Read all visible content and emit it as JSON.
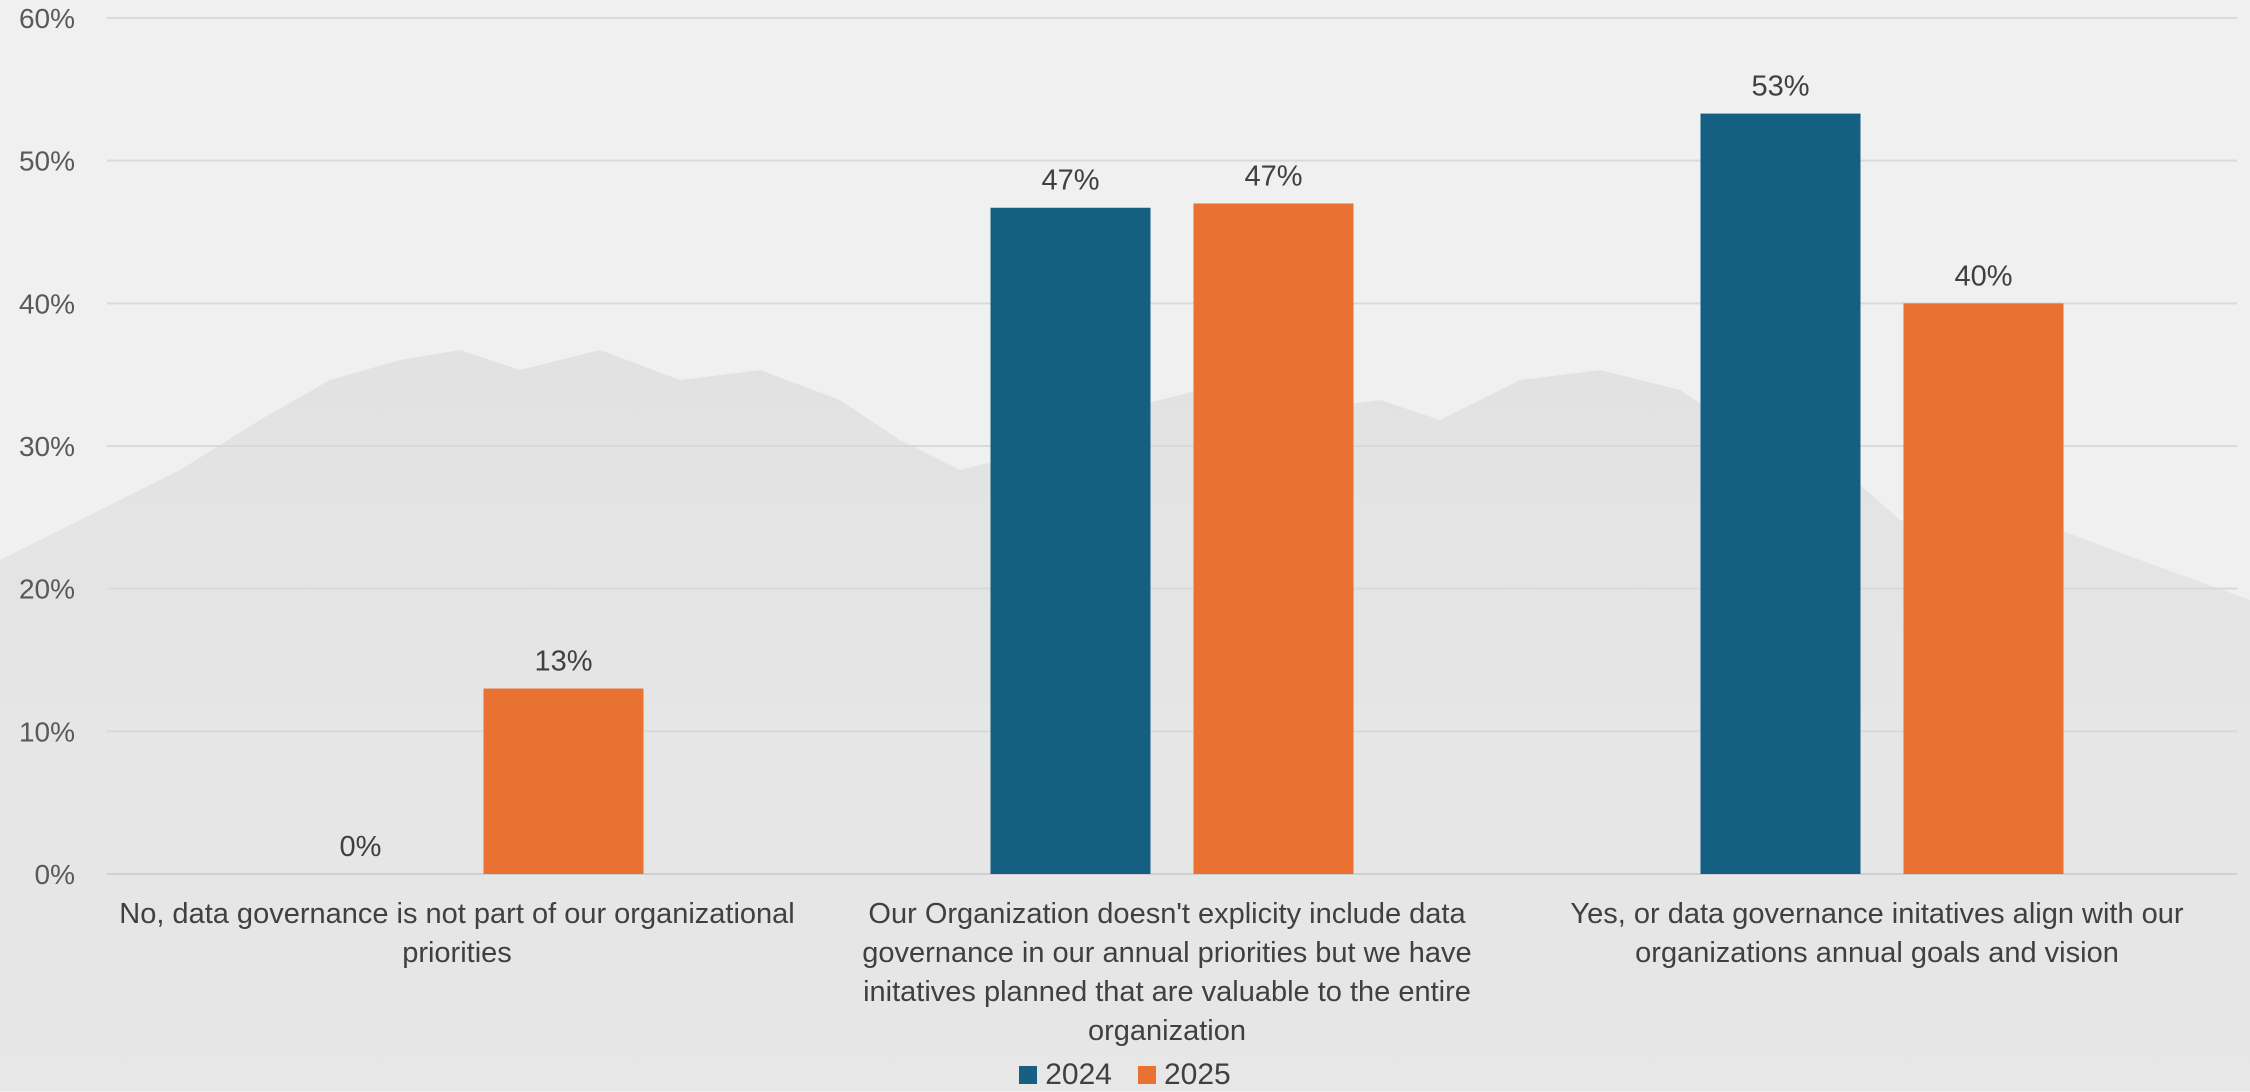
{
  "chart_data": {
    "type": "bar",
    "categories": [
      "No, data governance is not part of our organizational priorities",
      "Our Organization doesn't explicity include data governance in our annual priorities but we have initatives planned that are valuable to the entire organization",
      "Yes, or data governance initatives align with our organizations annual goals and vision"
    ],
    "series": [
      {
        "name": "2024",
        "values": [
          0,
          46.7,
          53.3
        ],
        "labels": [
          "0%",
          "47%",
          "53%"
        ],
        "color": "#155f83"
      },
      {
        "name": "2025",
        "values": [
          13,
          47,
          40
        ],
        "labels": [
          "13%",
          "47%",
          "40%"
        ],
        "color": "#e97132"
      }
    ],
    "y_ticks": [
      "0%",
      "10%",
      "20%",
      "30%",
      "40%",
      "50%",
      "60%"
    ],
    "ylim": [
      0,
      60
    ],
    "grid": true,
    "legend_position": "bottom",
    "title": "",
    "xlabel": "",
    "ylabel": ""
  }
}
